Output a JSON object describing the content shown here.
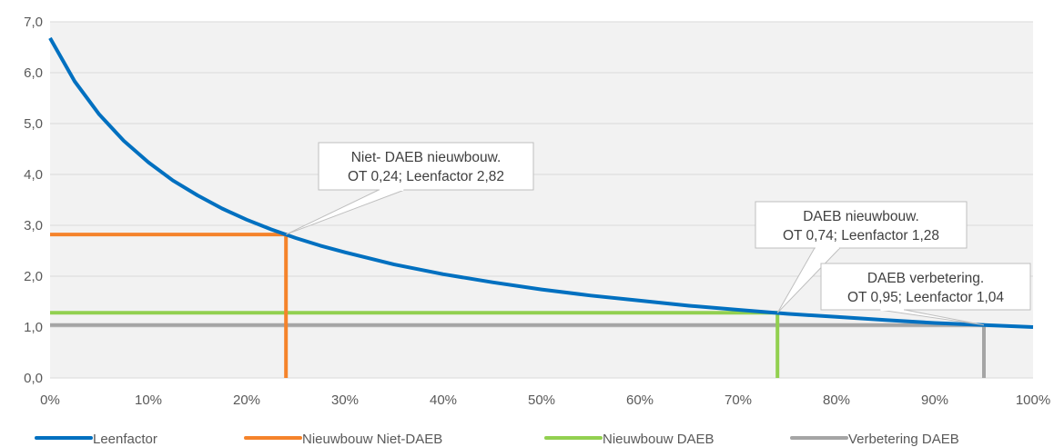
{
  "chart_data": {
    "type": "line",
    "title": "",
    "xlabel": "",
    "ylabel": "",
    "xlim": [
      0,
      1
    ],
    "ylim": [
      0,
      7
    ],
    "grid": true,
    "legend_position": "bottom",
    "x_ticks": [
      "0%",
      "10%",
      "20%",
      "30%",
      "40%",
      "50%",
      "60%",
      "70%",
      "80%",
      "90%",
      "100%"
    ],
    "y_ticks": [
      "0,0",
      "1,0",
      "2,0",
      "3,0",
      "4,0",
      "5,0",
      "6,0",
      "7,0"
    ],
    "series": [
      {
        "name": "Leenfactor",
        "color": "#0070C0",
        "x": [
          0,
          0.025,
          0.05,
          0.075,
          0.1,
          0.125,
          0.15,
          0.175,
          0.2,
          0.225,
          0.25,
          0.275,
          0.3,
          0.35,
          0.4,
          0.45,
          0.5,
          0.55,
          0.6,
          0.65,
          0.7,
          0.75,
          0.8,
          0.85,
          0.9,
          0.95,
          1.0
        ],
        "y": [
          6.68,
          5.83,
          5.18,
          4.66,
          4.24,
          3.88,
          3.59,
          3.33,
          3.11,
          2.92,
          2.75,
          2.6,
          2.47,
          2.23,
          2.04,
          1.88,
          1.74,
          1.62,
          1.52,
          1.42,
          1.34,
          1.26,
          1.2,
          1.14,
          1.08,
          1.04,
          1.0
        ]
      },
      {
        "name": "Nieuwbouw Niet-DAEB",
        "color": "#F5832B",
        "x": [
          0,
          0.24,
          0.24
        ],
        "y": [
          2.82,
          2.82,
          0
        ]
      },
      {
        "name": "Nieuwbouw DAEB",
        "color": "#92D050",
        "x": [
          0,
          0.74,
          0.74
        ],
        "y": [
          1.28,
          1.28,
          0
        ]
      },
      {
        "name": "Verbetering DAEB",
        "color": "#A5A5A5",
        "x": [
          0,
          0.95,
          0.95
        ],
        "y": [
          1.04,
          1.04,
          0
        ]
      }
    ],
    "annotations": [
      {
        "line1": "Niet- DAEB nieuwbouw.",
        "line2": "OT 0,24; Leenfactor 2,82",
        "point_x": 0.24,
        "point_y": 2.82
      },
      {
        "line1": "DAEB nieuwbouw.",
        "line2": "OT 0,74; Leenfactor 1,28",
        "point_x": 0.74,
        "point_y": 1.28
      },
      {
        "line1": "DAEB verbetering.",
        "line2": "OT 0,95; Leenfactor 1,04",
        "point_x": 0.95,
        "point_y": 1.04
      }
    ]
  }
}
